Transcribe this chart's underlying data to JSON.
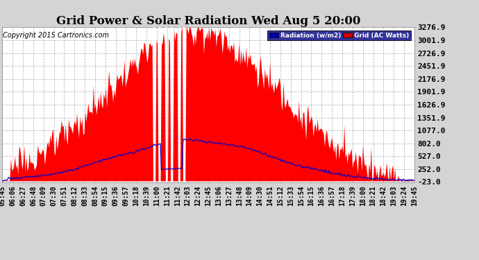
{
  "title": "Grid Power & Solar Radiation Wed Aug 5 20:00",
  "copyright": "Copyright 2015 Cartronics.com",
  "fig_background": "#d4d4d4",
  "plot_background": "#ffffff",
  "y_ticks": [
    -23.0,
    252.0,
    527.0,
    802.0,
    1077.0,
    1351.9,
    1626.9,
    1901.9,
    2176.9,
    2451.9,
    2726.9,
    3001.9,
    3276.9
  ],
  "y_min": -23.0,
  "y_max": 3276.9,
  "radiation_color": "#0000cc",
  "grid_color_fill": "#ff0000",
  "legend_radiation_bg": "#0000aa",
  "legend_grid_bg": "#cc0000",
  "title_fontsize": 12,
  "copyright_fontsize": 7,
  "tick_fontsize": 7,
  "ytick_fontsize": 8,
  "x_tick_labels": [
    "05:45",
    "06:06",
    "06:27",
    "06:48",
    "07:09",
    "07:30",
    "07:51",
    "08:12",
    "08:33",
    "08:54",
    "09:15",
    "09:36",
    "09:57",
    "10:18",
    "10:39",
    "11:00",
    "11:21",
    "11:42",
    "12:03",
    "12:24",
    "12:45",
    "13:06",
    "13:27",
    "13:48",
    "14:09",
    "14:30",
    "14:51",
    "15:12",
    "15:33",
    "15:54",
    "16:15",
    "16:36",
    "16:57",
    "17:18",
    "17:39",
    "18:00",
    "18:21",
    "18:42",
    "19:03",
    "19:24",
    "19:45"
  ]
}
